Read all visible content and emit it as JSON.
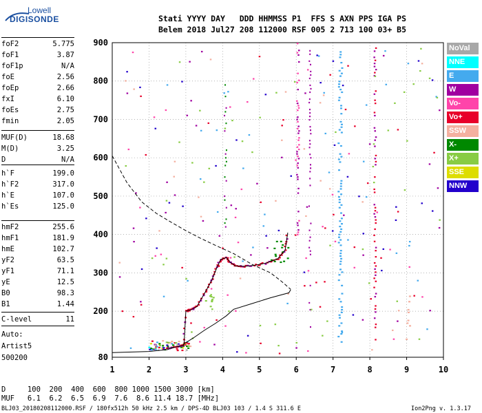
{
  "logo": {
    "line1": "Lowell",
    "line2": "DIGISONDE"
  },
  "header": {
    "line1": "Stati YYYY DAY   DDD HHMMSS P1  FFS S AXN PPS IGA PS",
    "line2": "Belem 2018 Jul27 208 112000 RSF 005 2 713 100 03+ B5"
  },
  "params": [
    {
      "name": "foF2",
      "value": "5.775"
    },
    {
      "name": "foF1",
      "value": "3.87"
    },
    {
      "name": "foF1p",
      "value": "N/A"
    },
    {
      "name": "foE",
      "value": "2.56"
    },
    {
      "name": "foEp",
      "value": "2.66"
    },
    {
      "name": "fxI",
      "value": "6.10"
    },
    {
      "name": "foEs",
      "value": "2.75"
    },
    {
      "name": "fmin",
      "value": "2.05"
    },
    {
      "name": "MUF(D)",
      "value": "18.68"
    },
    {
      "name": "M(D)",
      "value": "3.25"
    },
    {
      "name": "D",
      "value": "N/A"
    },
    {
      "name": "h`F",
      "value": "199.0"
    },
    {
      "name": "h`F2",
      "value": "317.0"
    },
    {
      "name": "h`E",
      "value": "107.0"
    },
    {
      "name": "h`Es",
      "value": "125.0"
    },
    {
      "name": "hmF2",
      "value": "255.6"
    },
    {
      "name": "hmF1",
      "value": "181.9"
    },
    {
      "name": "hmE",
      "value": "102.7"
    },
    {
      "name": "yF2",
      "value": "63.5"
    },
    {
      "name": "yF1",
      "value": "71.1"
    },
    {
      "name": "yE",
      "value": "12.5"
    },
    {
      "name": "B0",
      "value": "98.3"
    },
    {
      "name": "B1",
      "value": "1.44"
    },
    {
      "name": "C-level",
      "value": "11"
    }
  ],
  "auto": {
    "line1": "Auto:",
    "line2": "Artist5",
    "line3": "500200"
  },
  "legend": [
    {
      "label": "NoVal",
      "color": "#a8a8a8"
    },
    {
      "label": "NNE",
      "color": "#00ffff"
    },
    {
      "label": "E",
      "color": "#44aaee"
    },
    {
      "label": "W",
      "color": "#a000a0"
    },
    {
      "label": "Vo-",
      "color": "#ff44aa"
    },
    {
      "label": "Vo+",
      "color": "#e8002a"
    },
    {
      "label": "SSW",
      "color": "#f4b0a0"
    },
    {
      "label": "X-",
      "color": "#008800"
    },
    {
      "label": "X+",
      "color": "#88cc44"
    },
    {
      "label": "SSE",
      "color": "#dddd00"
    },
    {
      "label": "NNW",
      "color": "#2200cc"
    }
  ],
  "bottom": {
    "d_line": "D     100  200  400  600  800 1000 1500 3000 [km]",
    "muf_line": "MUF   6.1  6.2  6.5  6.9  7.6  8.6 11.4 18.7 [MHz]"
  },
  "footer": {
    "left": "BLJ03_20180208112000.RSF / 180fx512h 50 kHz 2.5 km / DPS-4D BLJ03 103 / 1.4 S 311.6 E",
    "right": "Ion2Png v. 1.3.17"
  },
  "chart_data": {
    "type": "scatter",
    "xlim": [
      1,
      10
    ],
    "ylim": [
      80,
      900
    ],
    "x_ticks": [
      1,
      2,
      3,
      4,
      5,
      6,
      7,
      8,
      9,
      10
    ],
    "y_ticks": [
      80,
      200,
      300,
      400,
      500,
      600,
      700,
      800,
      900
    ],
    "grid": "dotted",
    "legend_position": "right",
    "profile_solid": [
      [
        1.0,
        92
      ],
      [
        2.0,
        95
      ],
      [
        2.5,
        100
      ],
      [
        2.9,
        112
      ],
      [
        3.2,
        130
      ],
      [
        3.5,
        150
      ],
      [
        3.8,
        168
      ],
      [
        4.1,
        188
      ],
      [
        4.3,
        205
      ],
      [
        4.8,
        220
      ],
      [
        5.3,
        235
      ],
      [
        5.8,
        248
      ],
      [
        5.85,
        256
      ]
    ],
    "profile_dashed": [
      [
        1.0,
        605
      ],
      [
        1.4,
        535
      ],
      [
        1.8,
        485
      ],
      [
        2.2,
        455
      ],
      [
        2.6,
        432
      ],
      [
        3.0,
        410
      ],
      [
        3.4,
        390
      ],
      [
        3.8,
        372
      ],
      [
        4.3,
        350
      ],
      [
        4.8,
        322
      ],
      [
        5.3,
        300
      ],
      [
        5.6,
        278
      ],
      [
        5.85,
        257
      ]
    ],
    "trace_fit": [
      [
        2.5,
        103
      ],
      [
        2.8,
        108
      ],
      [
        2.95,
        112
      ],
      [
        3.0,
        200
      ],
      [
        3.15,
        204
      ],
      [
        3.3,
        212
      ],
      [
        3.5,
        245
      ],
      [
        3.7,
        280
      ],
      [
        3.85,
        315
      ],
      [
        3.95,
        335
      ],
      [
        4.1,
        340
      ],
      [
        4.2,
        328
      ],
      [
        4.35,
        318
      ],
      [
        4.6,
        317
      ],
      [
        4.9,
        320
      ],
      [
        5.2,
        326
      ],
      [
        5.5,
        337
      ],
      [
        5.7,
        360
      ],
      [
        5.77,
        405
      ]
    ]
  }
}
